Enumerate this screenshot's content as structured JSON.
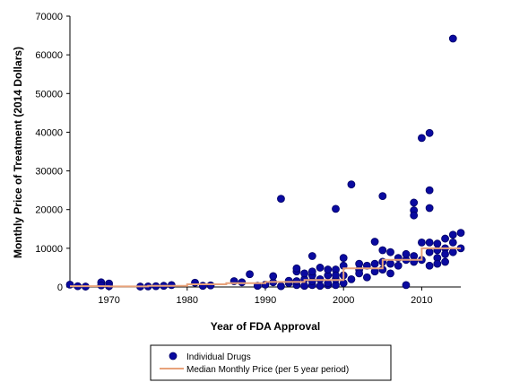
{
  "chart_data": {
    "type": "scatter",
    "title": "",
    "xlabel": "Year of FDA Approval",
    "ylabel": "Monthly Price of Treatment (2014 Dollars)",
    "xlim": [
      1965,
      2015
    ],
    "ylim": [
      0,
      70000
    ],
    "x_ticks": [
      1970,
      1980,
      1990,
      2000,
      2010
    ],
    "y_ticks": [
      0,
      10000,
      20000,
      30000,
      40000,
      50000,
      60000,
      70000
    ],
    "x_tick_labels": [
      "1970",
      "1980",
      "1990",
      "2000",
      "2010"
    ],
    "y_tick_labels": [
      "0",
      "10000",
      "20000",
      "30000",
      "40000",
      "50000",
      "60000",
      "70000"
    ],
    "grid": false,
    "legend_position": "bottom-center",
    "colors": {
      "points": "#0a0aa0",
      "point_edge": "#000066",
      "median_line": "#e8a27a",
      "axis": "#000000"
    },
    "series": [
      {
        "name": "Individual Drugs",
        "marker": "circle",
        "points": [
          [
            1965,
            600
          ],
          [
            1966,
            200
          ],
          [
            1967,
            100
          ],
          [
            1969,
            1200
          ],
          [
            1969,
            400
          ],
          [
            1970,
            900
          ],
          [
            1970,
            200
          ],
          [
            1974,
            100
          ],
          [
            1975,
            150
          ],
          [
            1976,
            200
          ],
          [
            1977,
            300
          ],
          [
            1978,
            500
          ],
          [
            1981,
            1100
          ],
          [
            1982,
            300
          ],
          [
            1983,
            400
          ],
          [
            1986,
            1500
          ],
          [
            1987,
            1200
          ],
          [
            1988,
            3300
          ],
          [
            1989,
            300
          ],
          [
            1990,
            600
          ],
          [
            1991,
            1200
          ],
          [
            1991,
            2800
          ],
          [
            1992,
            22800
          ],
          [
            1992,
            200
          ],
          [
            1993,
            1000
          ],
          [
            1993,
            1600
          ],
          [
            1994,
            500
          ],
          [
            1994,
            1500
          ],
          [
            1994,
            4000
          ],
          [
            1994,
            4800
          ],
          [
            1995,
            300
          ],
          [
            1995,
            2000
          ],
          [
            1995,
            3500
          ],
          [
            1996,
            500
          ],
          [
            1996,
            1500
          ],
          [
            1996,
            3000
          ],
          [
            1996,
            8000
          ],
          [
            1996,
            4000
          ],
          [
            1997,
            300
          ],
          [
            1997,
            2000
          ],
          [
            1997,
            5000
          ],
          [
            1998,
            500
          ],
          [
            1998,
            1000
          ],
          [
            1998,
            3000
          ],
          [
            1998,
            4500
          ],
          [
            1999,
            20200
          ],
          [
            1999,
            500
          ],
          [
            1999,
            2000
          ],
          [
            1999,
            4500
          ],
          [
            1999,
            3000
          ],
          [
            2000,
            1000
          ],
          [
            2000,
            3000
          ],
          [
            2000,
            5500
          ],
          [
            2000,
            7500
          ],
          [
            2001,
            26500
          ],
          [
            2001,
            2000
          ],
          [
            2002,
            4500
          ],
          [
            2002,
            6000
          ],
          [
            2002,
            3500
          ],
          [
            2003,
            2500
          ],
          [
            2003,
            5500
          ],
          [
            2004,
            11700
          ],
          [
            2004,
            4000
          ],
          [
            2004,
            6000
          ],
          [
            2005,
            23500
          ],
          [
            2005,
            9500
          ],
          [
            2005,
            4500
          ],
          [
            2005,
            6500
          ],
          [
            2006,
            9000
          ],
          [
            2006,
            6000
          ],
          [
            2006,
            3500
          ],
          [
            2007,
            5500
          ],
          [
            2007,
            7500
          ],
          [
            2008,
            500
          ],
          [
            2008,
            7000
          ],
          [
            2008,
            8500
          ],
          [
            2009,
            21800
          ],
          [
            2009,
            19800
          ],
          [
            2009,
            18500
          ],
          [
            2009,
            8000
          ],
          [
            2009,
            6500
          ],
          [
            2010,
            38500
          ],
          [
            2010,
            11500
          ],
          [
            2010,
            7000
          ],
          [
            2011,
            39800
          ],
          [
            2011,
            25000
          ],
          [
            2011,
            20400
          ],
          [
            2011,
            11500
          ],
          [
            2011,
            9000
          ],
          [
            2011,
            5500
          ],
          [
            2012,
            11200
          ],
          [
            2012,
            9500
          ],
          [
            2012,
            7500
          ],
          [
            2012,
            6000
          ],
          [
            2013,
            12500
          ],
          [
            2013,
            10000
          ],
          [
            2013,
            8500
          ],
          [
            2013,
            6500
          ],
          [
            2014,
            64200
          ],
          [
            2014,
            13500
          ],
          [
            2014,
            11500
          ],
          [
            2014,
            9000
          ],
          [
            2015,
            14000
          ],
          [
            2015,
            10000
          ]
        ]
      },
      {
        "name": "Median Monthly Price (per 5 year period)",
        "type": "step",
        "points": [
          [
            1965,
            200
          ],
          [
            1970,
            200
          ],
          [
            1970,
            150
          ],
          [
            1975,
            150
          ],
          [
            1975,
            300
          ],
          [
            1980,
            300
          ],
          [
            1980,
            700
          ],
          [
            1985,
            700
          ],
          [
            1985,
            1000
          ],
          [
            1990,
            1000
          ],
          [
            1990,
            1300
          ],
          [
            1995,
            1300
          ],
          [
            1995,
            1800
          ],
          [
            2000,
            1800
          ],
          [
            2000,
            4800
          ],
          [
            2005,
            4800
          ],
          [
            2005,
            7000
          ],
          [
            2010,
            7000
          ],
          [
            2010,
            10000
          ],
          [
            2015,
            10000
          ]
        ]
      }
    ]
  }
}
